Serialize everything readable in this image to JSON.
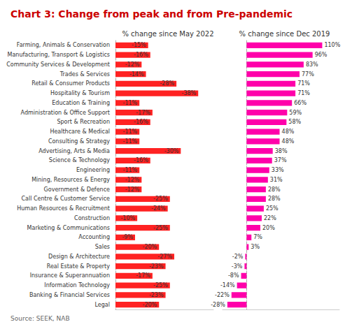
{
  "chart_data": [
    {
      "type": "bar",
      "orientation": "horizontal",
      "title": "Chart 3: Change from peak and from Pre-pandemic",
      "subtitle": "% change since May 2022",
      "annotations": [
        "Source: SEEK, NAB"
      ],
      "categories": [
        "Farming, Animals & Conservation",
        "Manufacturing, Transport & Logistics",
        "Community Services & Development",
        "Trades & Services",
        "Retail & Consumer Products",
        "Hospitality & Tourism",
        "Education & Training",
        "Administration & Office Support",
        "Sport & Recreation",
        "Healthcare & Medical",
        "Consulting & Strategy",
        "Advertising, Arts & Media",
        "Science & Technology",
        "Engineering",
        "Mining, Resources & Energy",
        "Government & Defence",
        "Call Centre & Customer Service",
        "Human Resources & Recruitment",
        "Construction",
        "Marketing & Communications",
        "Accounting",
        "Sales",
        "Design & Architecture",
        "Real Estate & Property",
        "Insurance & Superannuation",
        "Information Technology",
        "Banking & Financial Services",
        "Legal"
      ],
      "values": [
        -15,
        -16,
        -12,
        -14,
        -28,
        -38,
        -11,
        -17,
        -16,
        -11,
        -11,
        -30,
        -16,
        -11,
        -12,
        -12,
        -25,
        -24,
        -10,
        -25,
        -9,
        -20,
        -27,
        -23,
        -17,
        -25,
        -23,
        -20
      ],
      "value_labels": [
        "-15%",
        "-16%",
        "-12%",
        "-14%",
        "-28%",
        "-38%",
        "-11%",
        "-17%",
        "-16%",
        "-11%",
        "-11%",
        "-30%",
        "-16%",
        "-11%",
        "-12%",
        "-12%",
        "-25%",
        "-24%",
        "-10%",
        "-25%",
        "-9%",
        "-20%",
        "-27%",
        "-23%",
        "-17%",
        "-25%",
        "-23%",
        "-20%"
      ],
      "color": "#ff2222",
      "xlim": [
        0,
        -45
      ],
      "data_labels": true,
      "tick_labels": "y",
      "grid": false
    },
    {
      "type": "bar",
      "orientation": "horizontal",
      "subtitle": "% change since Dec 2019",
      "categories": [
        "Farming, Animals & Conservation",
        "Manufacturing, Transport & Logistics",
        "Community Services & Development",
        "Trades & Services",
        "Retail & Consumer Products",
        "Hospitality & Tourism",
        "Education & Training",
        "Administration & Office Support",
        "Sport & Recreation",
        "Healthcare & Medical",
        "Consulting & Strategy",
        "Advertising, Arts & Media",
        "Science & Technology",
        "Engineering",
        "Mining, Resources & Energy",
        "Government & Defence",
        "Call Centre & Customer Service",
        "Human Resources & Recruitment",
        "Construction",
        "Marketing & Communications",
        "Accounting",
        "Sales",
        "Design & Architecture",
        "Real Estate & Property",
        "Insurance & Superannuation",
        "Information Technology",
        "Banking & Financial Services",
        "Legal"
      ],
      "values": [
        110,
        96,
        83,
        77,
        71,
        71,
        66,
        59,
        58,
        48,
        48,
        38,
        37,
        33,
        31,
        28,
        28,
        25,
        22,
        20,
        7,
        3,
        -2,
        -3,
        -8,
        -14,
        -22,
        -28
      ],
      "value_labels": [
        "110%",
        "96%",
        "83%",
        "77%",
        "71%",
        "71%",
        "66%",
        "59%",
        "58%",
        "48%",
        "48%",
        "38%",
        "37%",
        "33%",
        "31%",
        "28%",
        "28%",
        "25%",
        "22%",
        "20%",
        "7%",
        "3%",
        "-2%",
        "-3%",
        "-8%",
        "-14%",
        "-22%",
        "-28%"
      ],
      "color": "#ff00aa",
      "xlim": [
        -35,
        135
      ],
      "data_labels": true,
      "tick_labels": false,
      "grid": false
    }
  ]
}
